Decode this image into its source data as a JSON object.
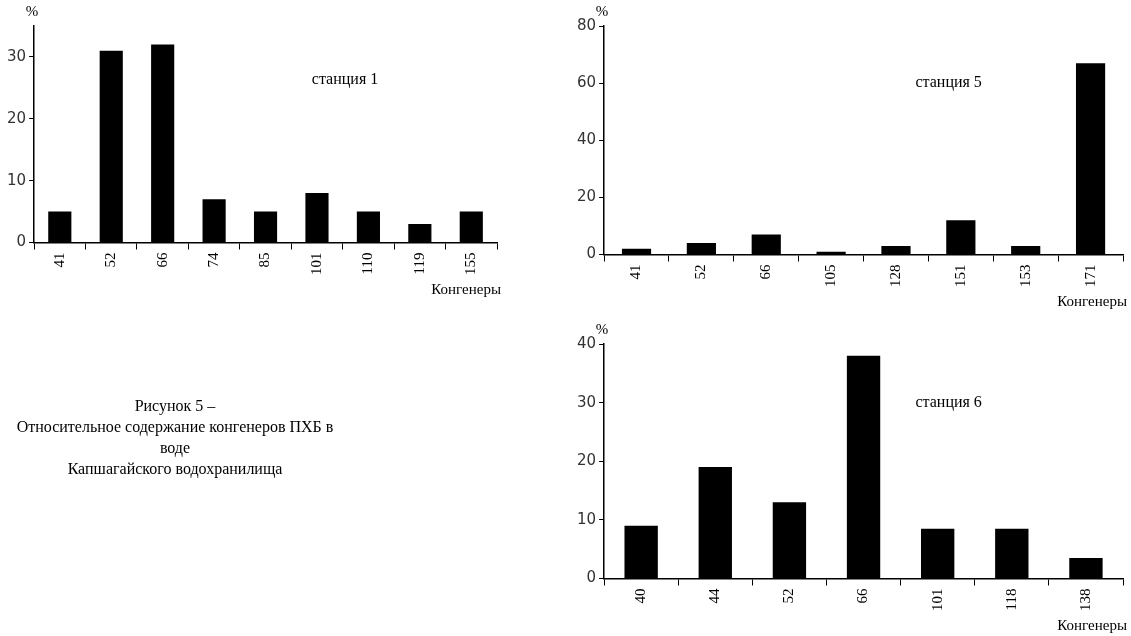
{
  "chart_data": [
    {
      "type": "bar",
      "ylabel": "%",
      "xlabel": "Конгенеры",
      "categories": [
        "41",
        "52",
        "66",
        "74",
        "85",
        "101",
        "110",
        "119",
        "155"
      ],
      "values": [
        5,
        31,
        32,
        7,
        5,
        8,
        5,
        3,
        5
      ],
      "color": "#000000",
      "ylim": [
        0,
        35
      ],
      "yticks": [
        0,
        10,
        20,
        30
      ],
      "annotations": [
        "станция 1"
      ]
    },
    {
      "type": "bar",
      "ylabel": "%",
      "xlabel": "Конгенеры",
      "categories": [
        "41",
        "52",
        "66",
        "105",
        "128",
        "151",
        "153",
        "171"
      ],
      "values": [
        2,
        4,
        7,
        1,
        3,
        12,
        3,
        67
      ],
      "color": "#000000",
      "ylim": [
        0,
        80
      ],
      "yticks": [
        0,
        20,
        40,
        60,
        80
      ],
      "annotations": [
        "станция 5"
      ]
    },
    {
      "type": "bar",
      "ylabel": "%",
      "xlabel": "Конгенеры",
      "categories": [
        "40",
        "44",
        "52",
        "66",
        "101",
        "118",
        "138"
      ],
      "values": [
        9,
        19,
        13,
        38,
        8.5,
        8.5,
        3.5
      ],
      "color": "#000000",
      "ylim": [
        0,
        40
      ],
      "yticks": [
        0,
        10,
        20,
        30,
        40
      ],
      "annotations": [
        "станция 6"
      ]
    },
    {
      "type": "other",
      "annotations": [
        "Рисунок 5 –",
        "Относительное содержание конгенеров ПХБ в воде",
        "Капшагайского водохранилища"
      ]
    }
  ]
}
